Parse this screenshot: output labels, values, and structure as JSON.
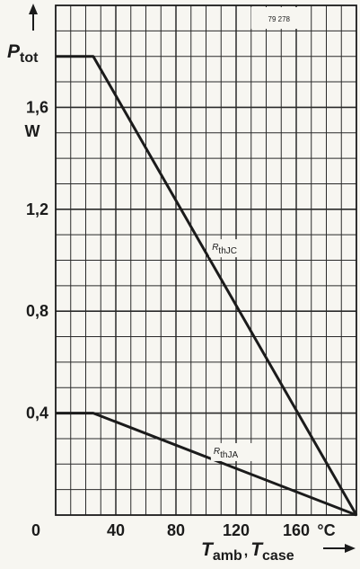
{
  "chart_data": {
    "type": "line",
    "ref_code": "79 278",
    "ylabel": {
      "main": "P",
      "sub": "tot"
    },
    "yunit": "W",
    "xlabel": {
      "main1": "T",
      "sub1": "amb",
      "sep": ",",
      "main2": "T",
      "sub2": "case"
    },
    "xunit": "°C",
    "xlim": [
      0,
      200
    ],
    "ylim": [
      0,
      2.0
    ],
    "xticks": [
      {
        "value": 0,
        "label": "0"
      },
      {
        "value": 40,
        "label": "40"
      },
      {
        "value": 80,
        "label": "80"
      },
      {
        "value": 120,
        "label": "120"
      },
      {
        "value": 160,
        "label": "160"
      }
    ],
    "yticks": [
      {
        "value": 0.4,
        "label": "0,4"
      },
      {
        "value": 0.8,
        "label": "0,8"
      },
      {
        "value": 1.2,
        "label": "1,2"
      },
      {
        "value": 1.6,
        "label": "1,6"
      }
    ],
    "grid": true,
    "series": [
      {
        "name": "RthJC",
        "label_main": "R",
        "label_sub": "thJC",
        "points": [
          [
            0,
            1.8
          ],
          [
            25,
            1.8
          ],
          [
            200,
            0.0
          ]
        ]
      },
      {
        "name": "RthJA",
        "label_main": "R",
        "label_sub": "thJA",
        "points": [
          [
            0,
            0.4
          ],
          [
            25,
            0.4
          ],
          [
            200,
            0.0
          ]
        ]
      }
    ]
  }
}
